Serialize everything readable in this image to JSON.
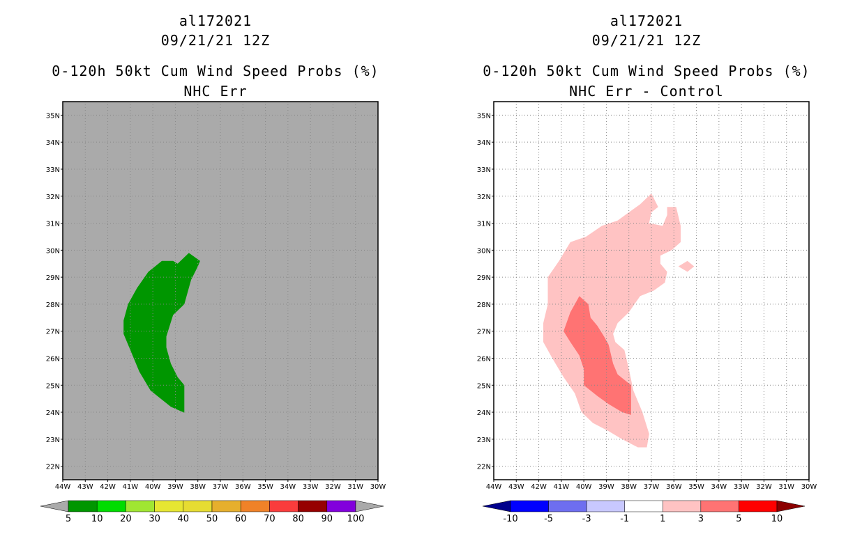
{
  "chart_data": [
    {
      "type": "heatmap",
      "title_lines": [
        "al172021",
        "09/21/21 12Z",
        "0-120h 50kt Cum Wind Speed Probs (%)",
        "NHC Err"
      ],
      "xlim": [
        -44,
        -30
      ],
      "ylim": [
        21.5,
        35.5
      ],
      "x_tick_labels": [
        "44W",
        "43W",
        "42W",
        "41W",
        "40W",
        "39W",
        "38W",
        "37W",
        "36W",
        "35W",
        "34W",
        "33W",
        "32W",
        "31W",
        "30W"
      ],
      "y_tick_labels": [
        "22N",
        "23N",
        "24N",
        "25N",
        "26N",
        "27N",
        "28N",
        "29N",
        "30N",
        "31N",
        "32N",
        "33N",
        "34N",
        "35N"
      ],
      "background_color": "#aaaaaa",
      "grid": true,
      "colorbar": {
        "labels": [
          "5",
          "10",
          "20",
          "30",
          "40",
          "50",
          "60",
          "70",
          "80",
          "90",
          "100"
        ],
        "colors": [
          "#009600",
          "#00dc00",
          "#a0e632",
          "#e6e632",
          "#e6dc32",
          "#e6af2d",
          "#f08228",
          "#fa3c3c",
          "#960000",
          "#8200dc"
        ],
        "under_color": "#aaaaaa",
        "over_color": "#aaaaaa"
      },
      "contours": [
        {
          "level": "5-10",
          "color": "#009600",
          "polygon": [
            [
              -38.4,
              29.9
            ],
            [
              -37.9,
              29.6
            ],
            [
              -38.0,
              29.4
            ],
            [
              -38.3,
              28.9
            ],
            [
              -38.6,
              28.0
            ],
            [
              -39.1,
              27.6
            ],
            [
              -39.4,
              26.8
            ],
            [
              -39.4,
              26.4
            ],
            [
              -39.2,
              25.8
            ],
            [
              -38.9,
              25.3
            ],
            [
              -38.6,
              25.0
            ],
            [
              -38.6,
              23.98
            ],
            [
              -39.2,
              24.2
            ],
            [
              -40.1,
              24.8
            ],
            [
              -40.6,
              25.5
            ],
            [
              -41.0,
              26.3
            ],
            [
              -41.3,
              26.9
            ],
            [
              -41.3,
              27.4
            ],
            [
              -41.1,
              28.0
            ],
            [
              -40.7,
              28.6
            ],
            [
              -40.2,
              29.2
            ],
            [
              -39.6,
              29.6
            ],
            [
              -39.1,
              29.6
            ],
            [
              -38.9,
              29.5
            ]
          ]
        }
      ]
    },
    {
      "type": "heatmap",
      "title_lines": [
        "al172021",
        "09/21/21 12Z",
        "0-120h 50kt Cum Wind Speed Probs (%)",
        "NHC Err - Control"
      ],
      "xlim": [
        -44,
        -30
      ],
      "ylim": [
        21.5,
        35.5
      ],
      "x_tick_labels": [
        "44W",
        "43W",
        "42W",
        "41W",
        "40W",
        "39W",
        "38W",
        "37W",
        "36W",
        "35W",
        "34W",
        "33W",
        "32W",
        "31W",
        "30W"
      ],
      "y_tick_labels": [
        "22N",
        "23N",
        "24N",
        "25N",
        "26N",
        "27N",
        "28N",
        "29N",
        "30N",
        "31N",
        "32N",
        "33N",
        "34N",
        "35N"
      ],
      "background_color": "#ffffff",
      "grid": true,
      "colorbar": {
        "labels": [
          "-10",
          "-5",
          "-3",
          "-1",
          "1",
          "3",
          "5",
          "10"
        ],
        "colors": [
          "#0000ff",
          "#6e6ef0",
          "#c8c8ff",
          "#ffffff",
          "#ffc3c3",
          "#ff7373",
          "#ff0000"
        ],
        "under_color": "#00008c",
        "over_color": "#8c0000"
      },
      "contours": [
        {
          "level": "1-3",
          "color": "#ffc3c3",
          "polygon": [
            [
              -37.0,
              32.1
            ],
            [
              -36.7,
              31.6
            ],
            [
              -37.0,
              31.4
            ],
            [
              -37.1,
              31.0
            ],
            [
              -36.5,
              30.9
            ],
            [
              -36.3,
              31.3
            ],
            [
              -36.3,
              31.6
            ],
            [
              -35.9,
              31.6
            ],
            [
              -35.7,
              30.9
            ],
            [
              -35.7,
              30.3
            ],
            [
              -36.1,
              30.0
            ],
            [
              -36.6,
              29.8
            ],
            [
              -36.6,
              29.5
            ],
            [
              -36.3,
              29.2
            ],
            [
              -36.4,
              28.8
            ],
            [
              -36.9,
              28.5
            ],
            [
              -37.5,
              28.3
            ],
            [
              -38.0,
              27.7
            ],
            [
              -38.5,
              27.3
            ],
            [
              -38.7,
              26.9
            ],
            [
              -38.6,
              26.6
            ],
            [
              -38.2,
              26.3
            ],
            [
              -38.0,
              25.6
            ],
            [
              -37.8,
              24.8
            ],
            [
              -37.4,
              24.0
            ],
            [
              -37.1,
              23.2
            ],
            [
              -37.2,
              22.7
            ],
            [
              -37.6,
              22.7
            ],
            [
              -38.3,
              23.0
            ],
            [
              -38.9,
              23.3
            ],
            [
              -39.6,
              23.6
            ],
            [
              -40.1,
              24.0
            ],
            [
              -40.4,
              24.7
            ],
            [
              -40.9,
              25.3
            ],
            [
              -41.4,
              26.0
            ],
            [
              -41.8,
              26.6
            ],
            [
              -41.8,
              27.3
            ],
            [
              -41.6,
              28.0
            ],
            [
              -41.6,
              29.0
            ],
            [
              -41.1,
              29.6
            ],
            [
              -40.6,
              30.3
            ],
            [
              -39.9,
              30.5
            ],
            [
              -39.2,
              30.9
            ],
            [
              -38.5,
              31.1
            ],
            [
              -38.0,
              31.4
            ],
            [
              -37.5,
              31.7
            ]
          ]
        },
        {
          "level": "1-3",
          "color": "#ffc3c3",
          "polygon": [
            [
              -35.4,
              29.6
            ],
            [
              -35.1,
              29.4
            ],
            [
              -35.4,
              29.2
            ],
            [
              -35.8,
              29.4
            ]
          ]
        },
        {
          "level": "3-5",
          "color": "#ff7373",
          "polygon": [
            [
              -40.2,
              28.3
            ],
            [
              -39.8,
              28.0
            ],
            [
              -39.7,
              27.5
            ],
            [
              -39.4,
              27.2
            ],
            [
              -39.1,
              26.8
            ],
            [
              -38.9,
              26.5
            ],
            [
              -38.7,
              25.8
            ],
            [
              -38.5,
              25.4
            ],
            [
              -37.9,
              25.0
            ],
            [
              -37.9,
              23.9
            ],
            [
              -38.3,
              24.0
            ],
            [
              -38.9,
              24.3
            ],
            [
              -39.4,
              24.6
            ],
            [
              -40.0,
              25.0
            ],
            [
              -40.0,
              25.6
            ],
            [
              -40.2,
              26.1
            ],
            [
              -40.6,
              26.6
            ],
            [
              -40.9,
              27.0
            ],
            [
              -40.6,
              27.7
            ]
          ]
        }
      ]
    }
  ]
}
